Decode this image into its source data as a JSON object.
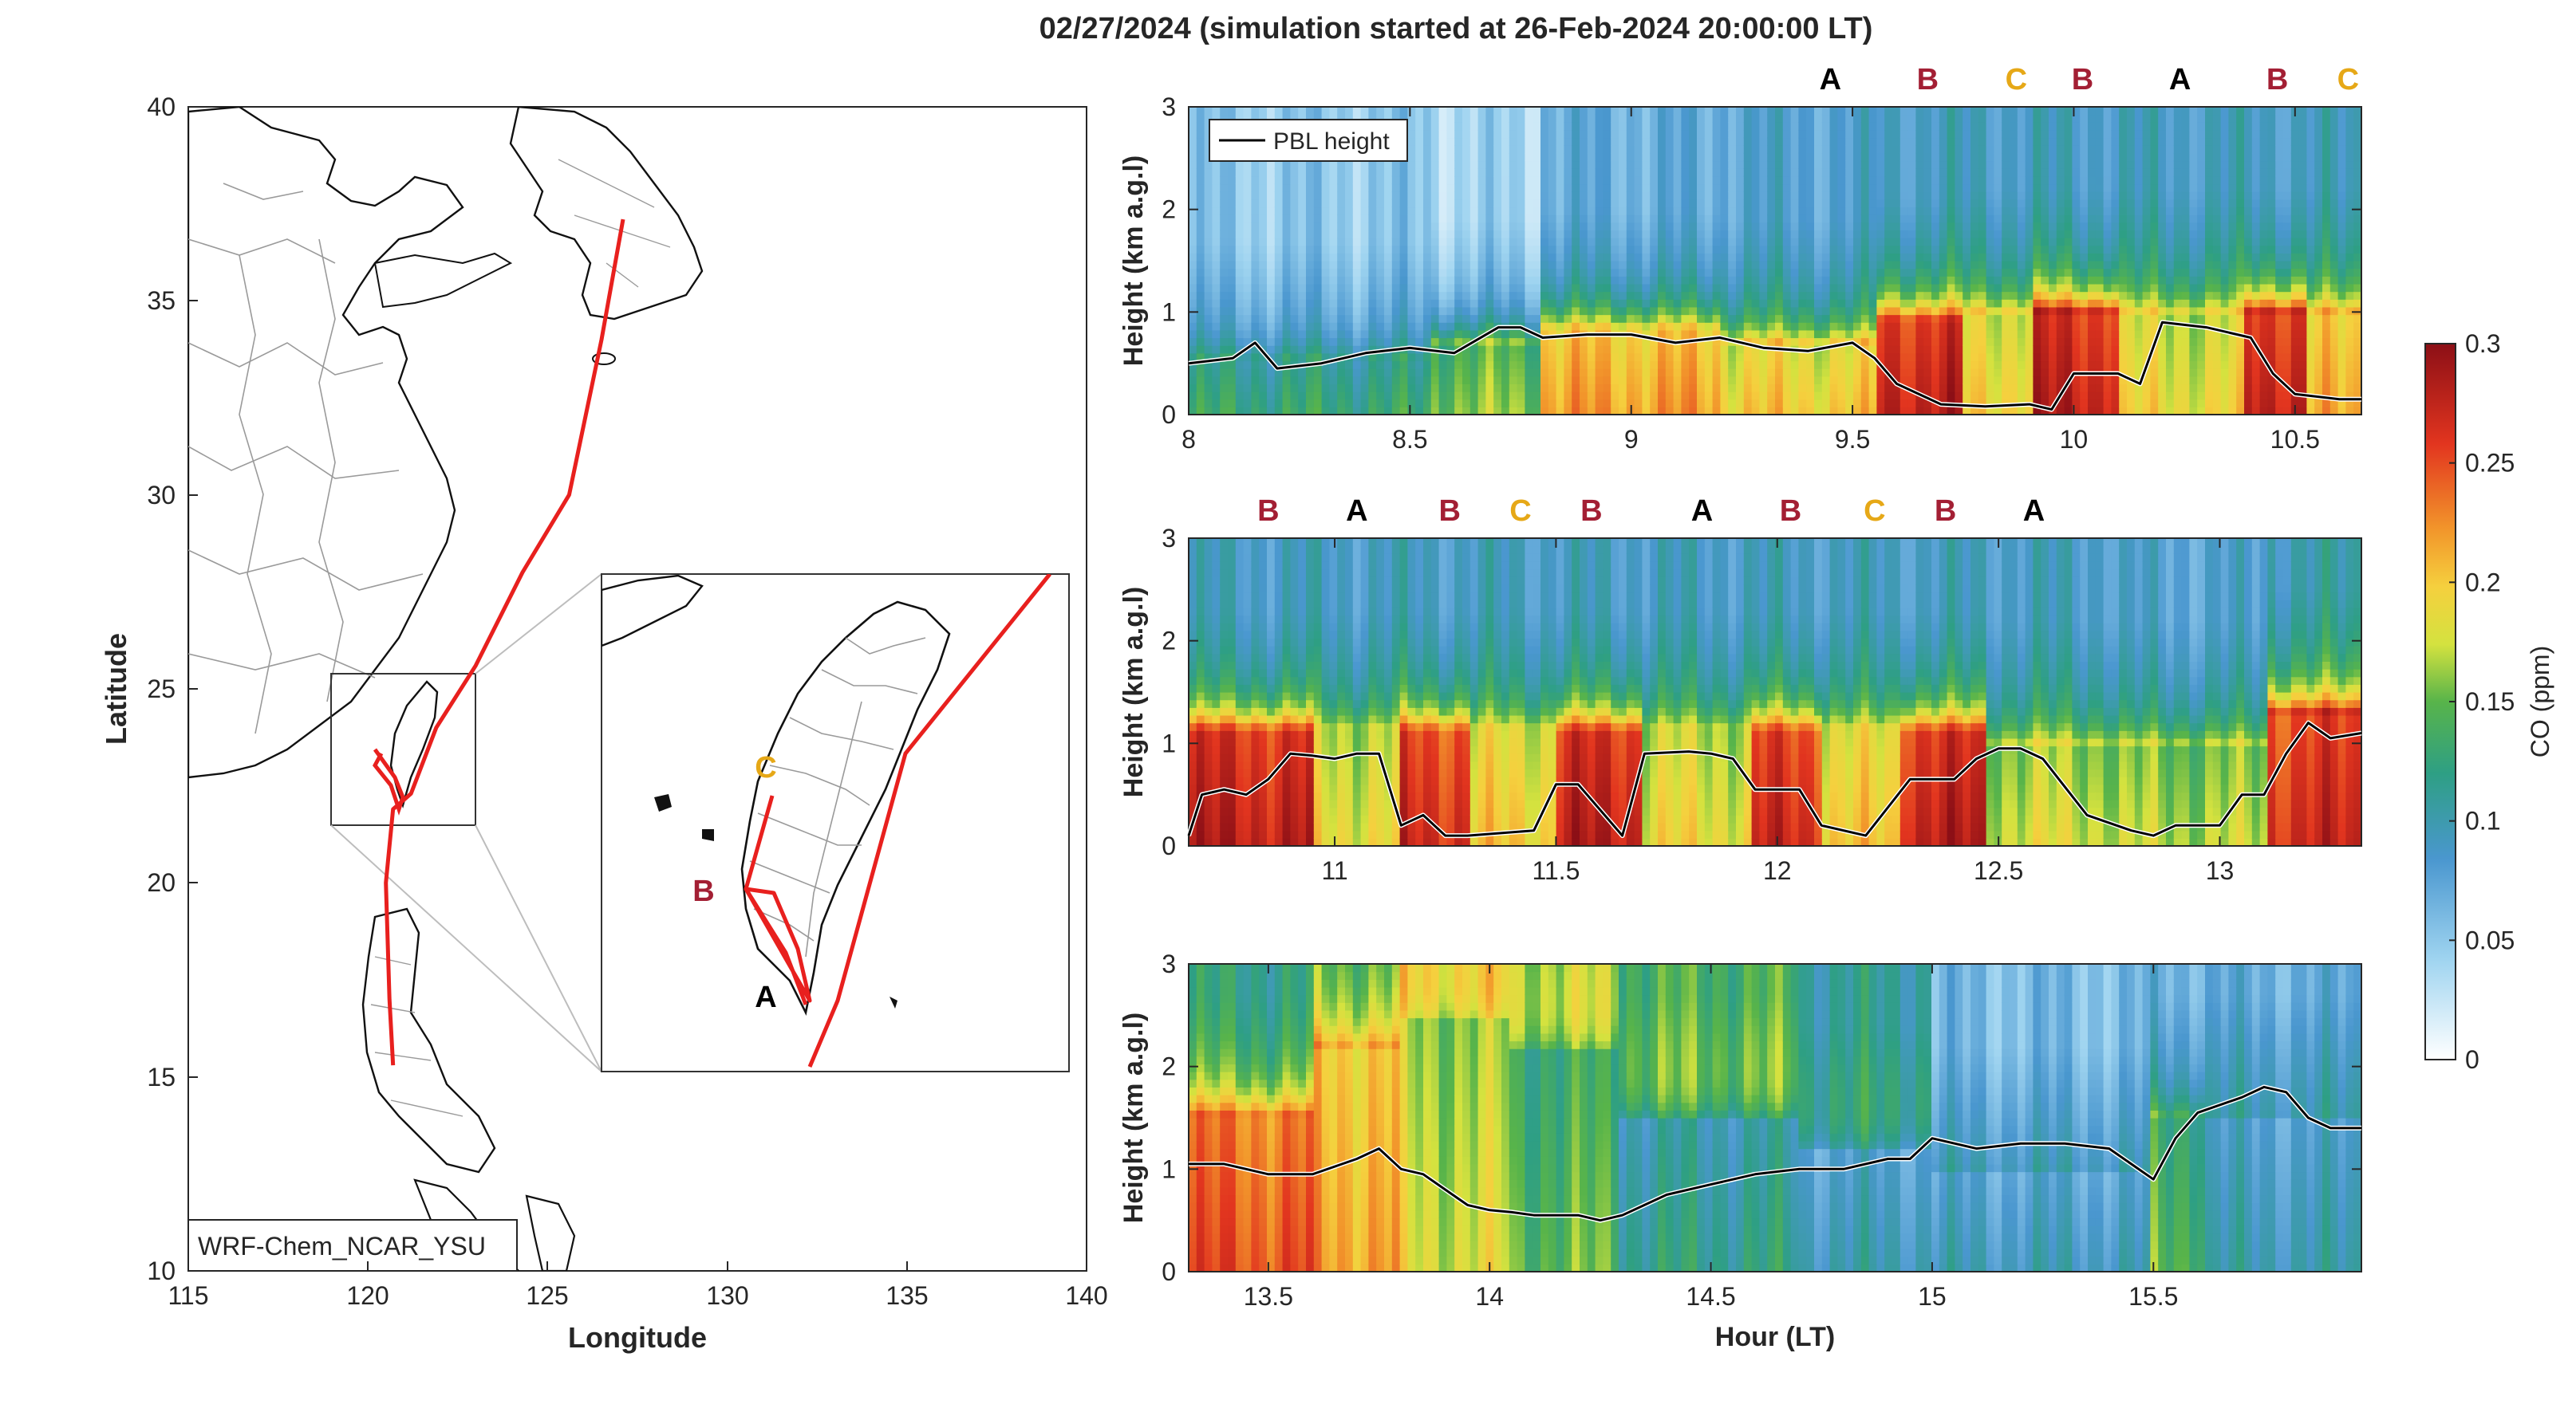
{
  "figure": {
    "title": "02/27/2024 (simulation started at 26-Feb-2024 20:00:00 LT)"
  },
  "chart_data": [
    {
      "type": "map",
      "id": "trajectory_map",
      "xlabel": "Longitude",
      "ylabel": "Latitude",
      "xlim": [
        115,
        140
      ],
      "ylim": [
        10,
        40
      ],
      "xticks": [
        "115",
        "120",
        "125",
        "130",
        "135",
        "140"
      ],
      "yticks": [
        "10",
        "15",
        "20",
        "25",
        "30",
        "35",
        "40"
      ],
      "grid": false,
      "legend_text": "WRF-Chem_NCAR_YSU",
      "legend_position": "bottom-left",
      "flight_track": {
        "color": "#e8201e",
        "lonlat": [
          [
            127.1,
            37.1
          ],
          [
            126.5,
            34.0
          ],
          [
            125.6,
            30.0
          ],
          [
            124.3,
            28.0
          ],
          [
            123.0,
            25.6
          ],
          [
            121.9,
            24.0
          ],
          [
            121.2,
            22.3
          ],
          [
            120.7,
            21.9
          ],
          [
            120.5,
            20.0
          ],
          [
            120.6,
            17.0
          ],
          [
            120.7,
            15.3
          ]
        ]
      },
      "inset": {
        "labels": [
          {
            "text": "A",
            "color": "#000000"
          },
          {
            "text": "B",
            "color": "#a31f34"
          },
          {
            "text": "C",
            "color": "#e6a817"
          }
        ]
      }
    },
    {
      "type": "heatmap",
      "id": "co_curtain_1",
      "xlabel": "",
      "ylabel": "Height (km a.g.l)",
      "xlim": [
        8.0,
        10.65
      ],
      "ylim": [
        0,
        3
      ],
      "xticks": [
        "8",
        "8.5",
        "9",
        "9.5",
        "10",
        "10.5"
      ],
      "yticks": [
        "0",
        "1",
        "2",
        "3"
      ],
      "legend": {
        "entries": [
          "PBL height"
        ],
        "position": "top-left"
      },
      "pbl_height": {
        "x": [
          8.0,
          8.1,
          8.15,
          8.2,
          8.3,
          8.4,
          8.5,
          8.6,
          8.7,
          8.75,
          8.8,
          8.9,
          9.0,
          9.1,
          9.2,
          9.3,
          9.4,
          9.5,
          9.55,
          9.6,
          9.7,
          9.8,
          9.9,
          9.95,
          10.0,
          10.1,
          10.15,
          10.2,
          10.3,
          10.4,
          10.45,
          10.5,
          10.6,
          10.65
        ],
        "y": [
          0.5,
          0.55,
          0.7,
          0.45,
          0.5,
          0.6,
          0.65,
          0.6,
          0.85,
          0.85,
          0.75,
          0.78,
          0.78,
          0.7,
          0.75,
          0.65,
          0.62,
          0.7,
          0.55,
          0.3,
          0.1,
          0.08,
          0.1,
          0.05,
          0.4,
          0.4,
          0.3,
          0.9,
          0.85,
          0.75,
          0.4,
          0.2,
          0.15,
          0.15
        ]
      },
      "annotations": [
        {
          "x": 9.45,
          "text": "A",
          "color": "#000000"
        },
        {
          "x": 9.67,
          "text": "B",
          "color": "#a31f34"
        },
        {
          "x": 9.87,
          "text": "C",
          "color": "#e6a817"
        },
        {
          "x": 10.02,
          "text": "B",
          "color": "#a31f34"
        },
        {
          "x": 10.24,
          "text": "A",
          "color": "#000000"
        },
        {
          "x": 10.46,
          "text": "B",
          "color": "#a31f34"
        },
        {
          "x": 10.62,
          "text": "C",
          "color": "#e6a817"
        }
      ],
      "co_segments": [
        {
          "x0": 8.0,
          "x1": 8.55,
          "pbl": 0.5,
          "surf": 0.13,
          "top": 0.08
        },
        {
          "x0": 8.55,
          "x1": 8.8,
          "pbl": 0.7,
          "surf": 0.16,
          "top": 0.07
        },
        {
          "x0": 8.8,
          "x1": 9.2,
          "pbl": 0.8,
          "surf": 0.22,
          "top": 0.1
        },
        {
          "x0": 9.2,
          "x1": 9.55,
          "pbl": 0.7,
          "surf": 0.2,
          "top": 0.11
        },
        {
          "x0": 9.55,
          "x1": 9.75,
          "pbl": 0.9,
          "surf": 0.28,
          "top": 0.12
        },
        {
          "x0": 9.75,
          "x1": 9.9,
          "pbl": 1.0,
          "surf": 0.2,
          "top": 0.12
        },
        {
          "x0": 9.9,
          "x1": 10.1,
          "pbl": 1.0,
          "surf": 0.28,
          "top": 0.12
        },
        {
          "x0": 10.1,
          "x1": 10.38,
          "pbl": 1.0,
          "surf": 0.19,
          "top": 0.12
        },
        {
          "x0": 10.38,
          "x1": 10.52,
          "pbl": 1.0,
          "surf": 0.28,
          "top": 0.12
        },
        {
          "x0": 10.52,
          "x1": 10.65,
          "pbl": 1.0,
          "surf": 0.21,
          "top": 0.12
        }
      ]
    },
    {
      "type": "heatmap",
      "id": "co_curtain_2",
      "xlabel": "",
      "ylabel": "Height (km a.g.l)",
      "xlim": [
        10.67,
        13.32
      ],
      "ylim": [
        0,
        3
      ],
      "xticks": [
        "11",
        "11.5",
        "12",
        "12.5",
        "13"
      ],
      "yticks": [
        "0",
        "1",
        "2",
        "3"
      ],
      "pbl_height": {
        "x": [
          10.67,
          10.7,
          10.75,
          10.8,
          10.85,
          10.9,
          10.95,
          11.0,
          11.05,
          11.1,
          11.15,
          11.2,
          11.25,
          11.3,
          11.45,
          11.5,
          11.55,
          11.65,
          11.7,
          11.8,
          11.85,
          11.9,
          11.95,
          12.05,
          12.1,
          12.2,
          12.3,
          12.4,
          12.45,
          12.5,
          12.55,
          12.6,
          12.7,
          12.8,
          12.85,
          12.9,
          13.0,
          13.05,
          13.1,
          13.15,
          13.2,
          13.25,
          13.32
        ],
        "y": [
          0.1,
          0.5,
          0.55,
          0.5,
          0.65,
          0.9,
          0.88,
          0.85,
          0.9,
          0.9,
          0.2,
          0.3,
          0.1,
          0.1,
          0.15,
          0.6,
          0.6,
          0.1,
          0.9,
          0.92,
          0.9,
          0.85,
          0.55,
          0.55,
          0.2,
          0.1,
          0.65,
          0.65,
          0.85,
          0.95,
          0.95,
          0.85,
          0.3,
          0.15,
          0.1,
          0.2,
          0.2,
          0.5,
          0.5,
          0.9,
          1.2,
          1.05,
          1.1
        ]
      },
      "annotations": [
        {
          "x": 10.85,
          "text": "B",
          "color": "#a31f34"
        },
        {
          "x": 11.05,
          "text": "A",
          "color": "#000000"
        },
        {
          "x": 11.26,
          "text": "B",
          "color": "#a31f34"
        },
        {
          "x": 11.42,
          "text": "C",
          "color": "#e6a817"
        },
        {
          "x": 11.58,
          "text": "B",
          "color": "#a31f34"
        },
        {
          "x": 11.83,
          "text": "A",
          "color": "#000000"
        },
        {
          "x": 12.03,
          "text": "B",
          "color": "#a31f34"
        },
        {
          "x": 12.22,
          "text": "C",
          "color": "#e6a817"
        },
        {
          "x": 12.38,
          "text": "B",
          "color": "#a31f34"
        },
        {
          "x": 12.58,
          "text": "A",
          "color": "#000000"
        }
      ],
      "co_segments": [
        {
          "x0": 10.67,
          "x1": 10.95,
          "pbl": 1.1,
          "surf": 0.28,
          "top": 0.12
        },
        {
          "x0": 10.95,
          "x1": 11.15,
          "pbl": 1.1,
          "surf": 0.19,
          "top": 0.12
        },
        {
          "x0": 11.15,
          "x1": 11.3,
          "pbl": 1.1,
          "surf": 0.27,
          "top": 0.12
        },
        {
          "x0": 11.3,
          "x1": 11.5,
          "pbl": 1.1,
          "surf": 0.2,
          "top": 0.12
        },
        {
          "x0": 11.5,
          "x1": 11.7,
          "pbl": 1.1,
          "surf": 0.28,
          "top": 0.12
        },
        {
          "x0": 11.7,
          "x1": 11.95,
          "pbl": 1.1,
          "surf": 0.19,
          "top": 0.12
        },
        {
          "x0": 11.95,
          "x1": 12.1,
          "pbl": 1.1,
          "surf": 0.27,
          "top": 0.12
        },
        {
          "x0": 12.1,
          "x1": 12.28,
          "pbl": 1.1,
          "surf": 0.2,
          "top": 0.12
        },
        {
          "x0": 12.28,
          "x1": 12.48,
          "pbl": 1.1,
          "surf": 0.28,
          "top": 0.12
        },
        {
          "x0": 12.48,
          "x1": 12.75,
          "pbl": 1.0,
          "surf": 0.18,
          "top": 0.12
        },
        {
          "x0": 12.75,
          "x1": 13.1,
          "pbl": 1.0,
          "surf": 0.17,
          "top": 0.11
        },
        {
          "x0": 13.1,
          "x1": 13.32,
          "pbl": 1.3,
          "surf": 0.27,
          "top": 0.13
        }
      ]
    },
    {
      "type": "heatmap",
      "id": "co_curtain_3",
      "xlabel": "Hour (LT)",
      "ylabel": "Height (km a.g.l)",
      "xlim": [
        13.32,
        15.97
      ],
      "ylim": [
        0,
        3
      ],
      "xticks": [
        "13.5",
        "14",
        "14.5",
        "15",
        "15.5"
      ],
      "yticks": [
        "0",
        "1",
        "2",
        "3"
      ],
      "pbl_height": {
        "x": [
          13.32,
          13.4,
          13.45,
          13.5,
          13.6,
          13.7,
          13.75,
          13.8,
          13.85,
          13.9,
          13.95,
          14.0,
          14.05,
          14.1,
          14.2,
          14.25,
          14.3,
          14.4,
          14.5,
          14.6,
          14.7,
          14.8,
          14.9,
          14.95,
          15.0,
          15.1,
          15.2,
          15.3,
          15.4,
          15.5,
          15.55,
          15.6,
          15.7,
          15.75,
          15.8,
          15.85,
          15.9,
          15.97
        ],
        "y": [
          1.05,
          1.05,
          1.0,
          0.95,
          0.95,
          1.1,
          1.2,
          1.0,
          0.95,
          0.8,
          0.65,
          0.6,
          0.58,
          0.55,
          0.55,
          0.5,
          0.55,
          0.75,
          0.85,
          0.95,
          1.0,
          1.0,
          1.1,
          1.1,
          1.3,
          1.2,
          1.25,
          1.25,
          1.2,
          0.9,
          1.3,
          1.55,
          1.7,
          1.8,
          1.75,
          1.5,
          1.4,
          1.4
        ]
      },
      "co_segments": [
        {
          "x0": 13.32,
          "x1": 13.6,
          "pbl": 1.5,
          "surf": 0.25,
          "top": 0.15
        },
        {
          "x0": 13.6,
          "x1": 13.8,
          "pbl": 2.2,
          "surf": 0.22,
          "top": 0.17
        },
        {
          "x0": 13.8,
          "x1": 14.05,
          "pbl": 2.5,
          "surf": 0.18,
          "top": 0.21
        },
        {
          "x0": 14.05,
          "x1": 14.3,
          "pbl": 2.2,
          "surf": 0.15,
          "top": 0.19
        },
        {
          "x0": 14.3,
          "x1": 14.7,
          "pbl": 1.5,
          "surf": 0.12,
          "top": 0.17
        },
        {
          "x0": 14.7,
          "x1": 15.0,
          "pbl": 1.2,
          "surf": 0.1,
          "top": 0.14
        },
        {
          "x0": 15.0,
          "x1": 15.5,
          "pbl": 1.0,
          "surf": 0.095,
          "top": 0.09
        },
        {
          "x0": 15.5,
          "x1": 15.62,
          "pbl": 1.5,
          "surf": 0.15,
          "top": 0.1
        },
        {
          "x0": 15.62,
          "x1": 15.97,
          "pbl": 1.5,
          "surf": 0.1,
          "top": 0.1
        }
      ]
    }
  ],
  "colorbar": {
    "label": "CO (ppm)",
    "range": [
      0,
      0.3
    ],
    "ticks": [
      "0",
      "0.05",
      "0.1",
      "0.15",
      "0.2",
      "0.25",
      "0.3"
    ],
    "colors": [
      "#ffffff",
      "#80c6ea",
      "#3f8ec8",
      "#2ca25f",
      "#e7e63c",
      "#f39f2b",
      "#e5341f",
      "#8e1015"
    ]
  }
}
